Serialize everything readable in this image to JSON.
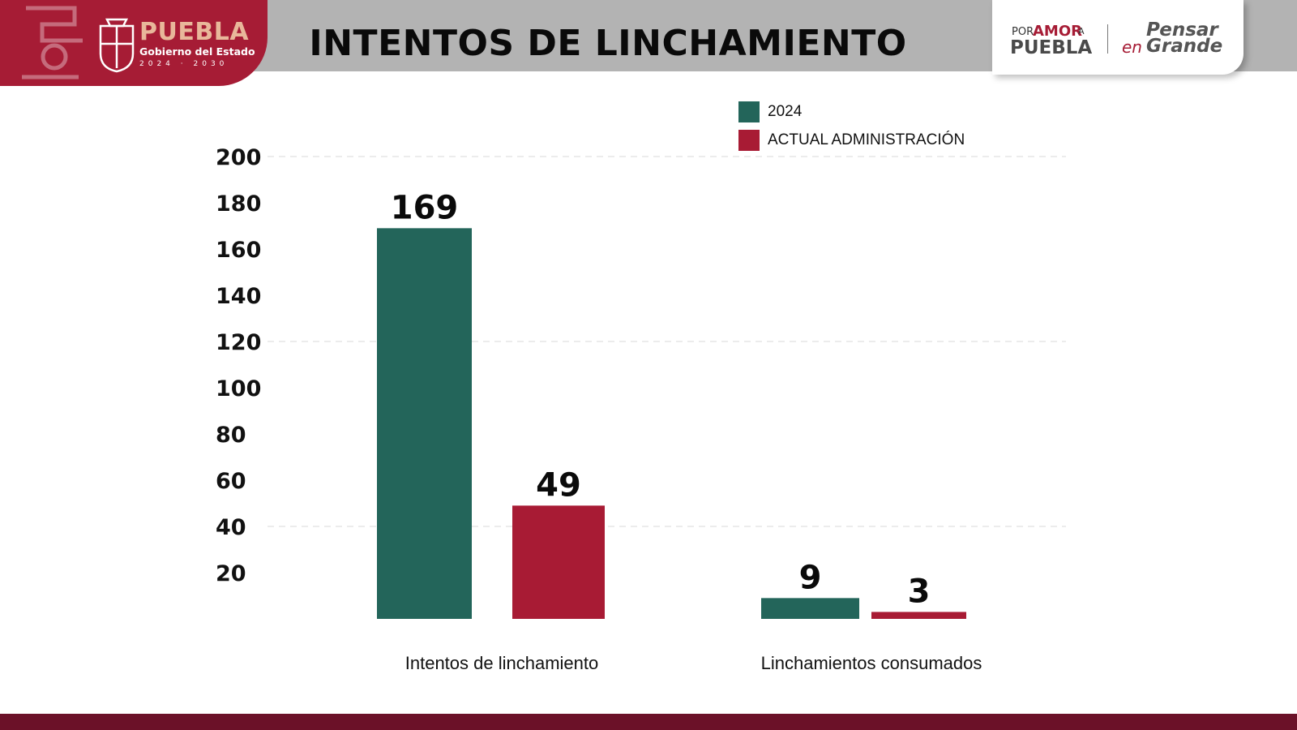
{
  "header": {
    "gov_name": "PUEBLA",
    "gov_subtitle": "Gobierno del Estado",
    "gov_years": "2024 · 2030",
    "title": "INTENTOS DE LINCHAMIENTO",
    "brand_por": "POR",
    "brand_amor": "AMOR",
    "brand_a": "A",
    "brand_puebla": "PUEBLA",
    "brand_pensar": "Pensar",
    "brand_en": "en",
    "brand_grande": "Grande"
  },
  "colors": {
    "series_2024": "#23655a",
    "series_actual": "#a81b34",
    "brand_red": "#a61c35",
    "header_gray": "#b3b3b3",
    "footer": "#6b1128"
  },
  "icons": {
    "crest": "state-coat-of-arms-icon",
    "ornament": "pre-hispanic-ornament-icon"
  },
  "chart_data": {
    "type": "bar",
    "title": "INTENTOS DE LINCHAMIENTO",
    "categories": [
      "Intentos de linchamiento",
      "Linchamientos consumados"
    ],
    "series": [
      {
        "name": "2024",
        "values": [
          169,
          9
        ]
      },
      {
        "name": "ACTUAL ADMINISTRACIÓN",
        "values": [
          49,
          3
        ]
      }
    ],
    "data_labels": [
      [
        "169",
        "9"
      ],
      [
        "49",
        "3"
      ]
    ],
    "ylim": [
      0,
      200
    ],
    "yticks": [
      20,
      40,
      60,
      80,
      100,
      120,
      140,
      160,
      180,
      200
    ],
    "gridlines": [
      40,
      120,
      200
    ],
    "legend_position": "top-right",
    "xlabel": "",
    "ylabel": ""
  }
}
